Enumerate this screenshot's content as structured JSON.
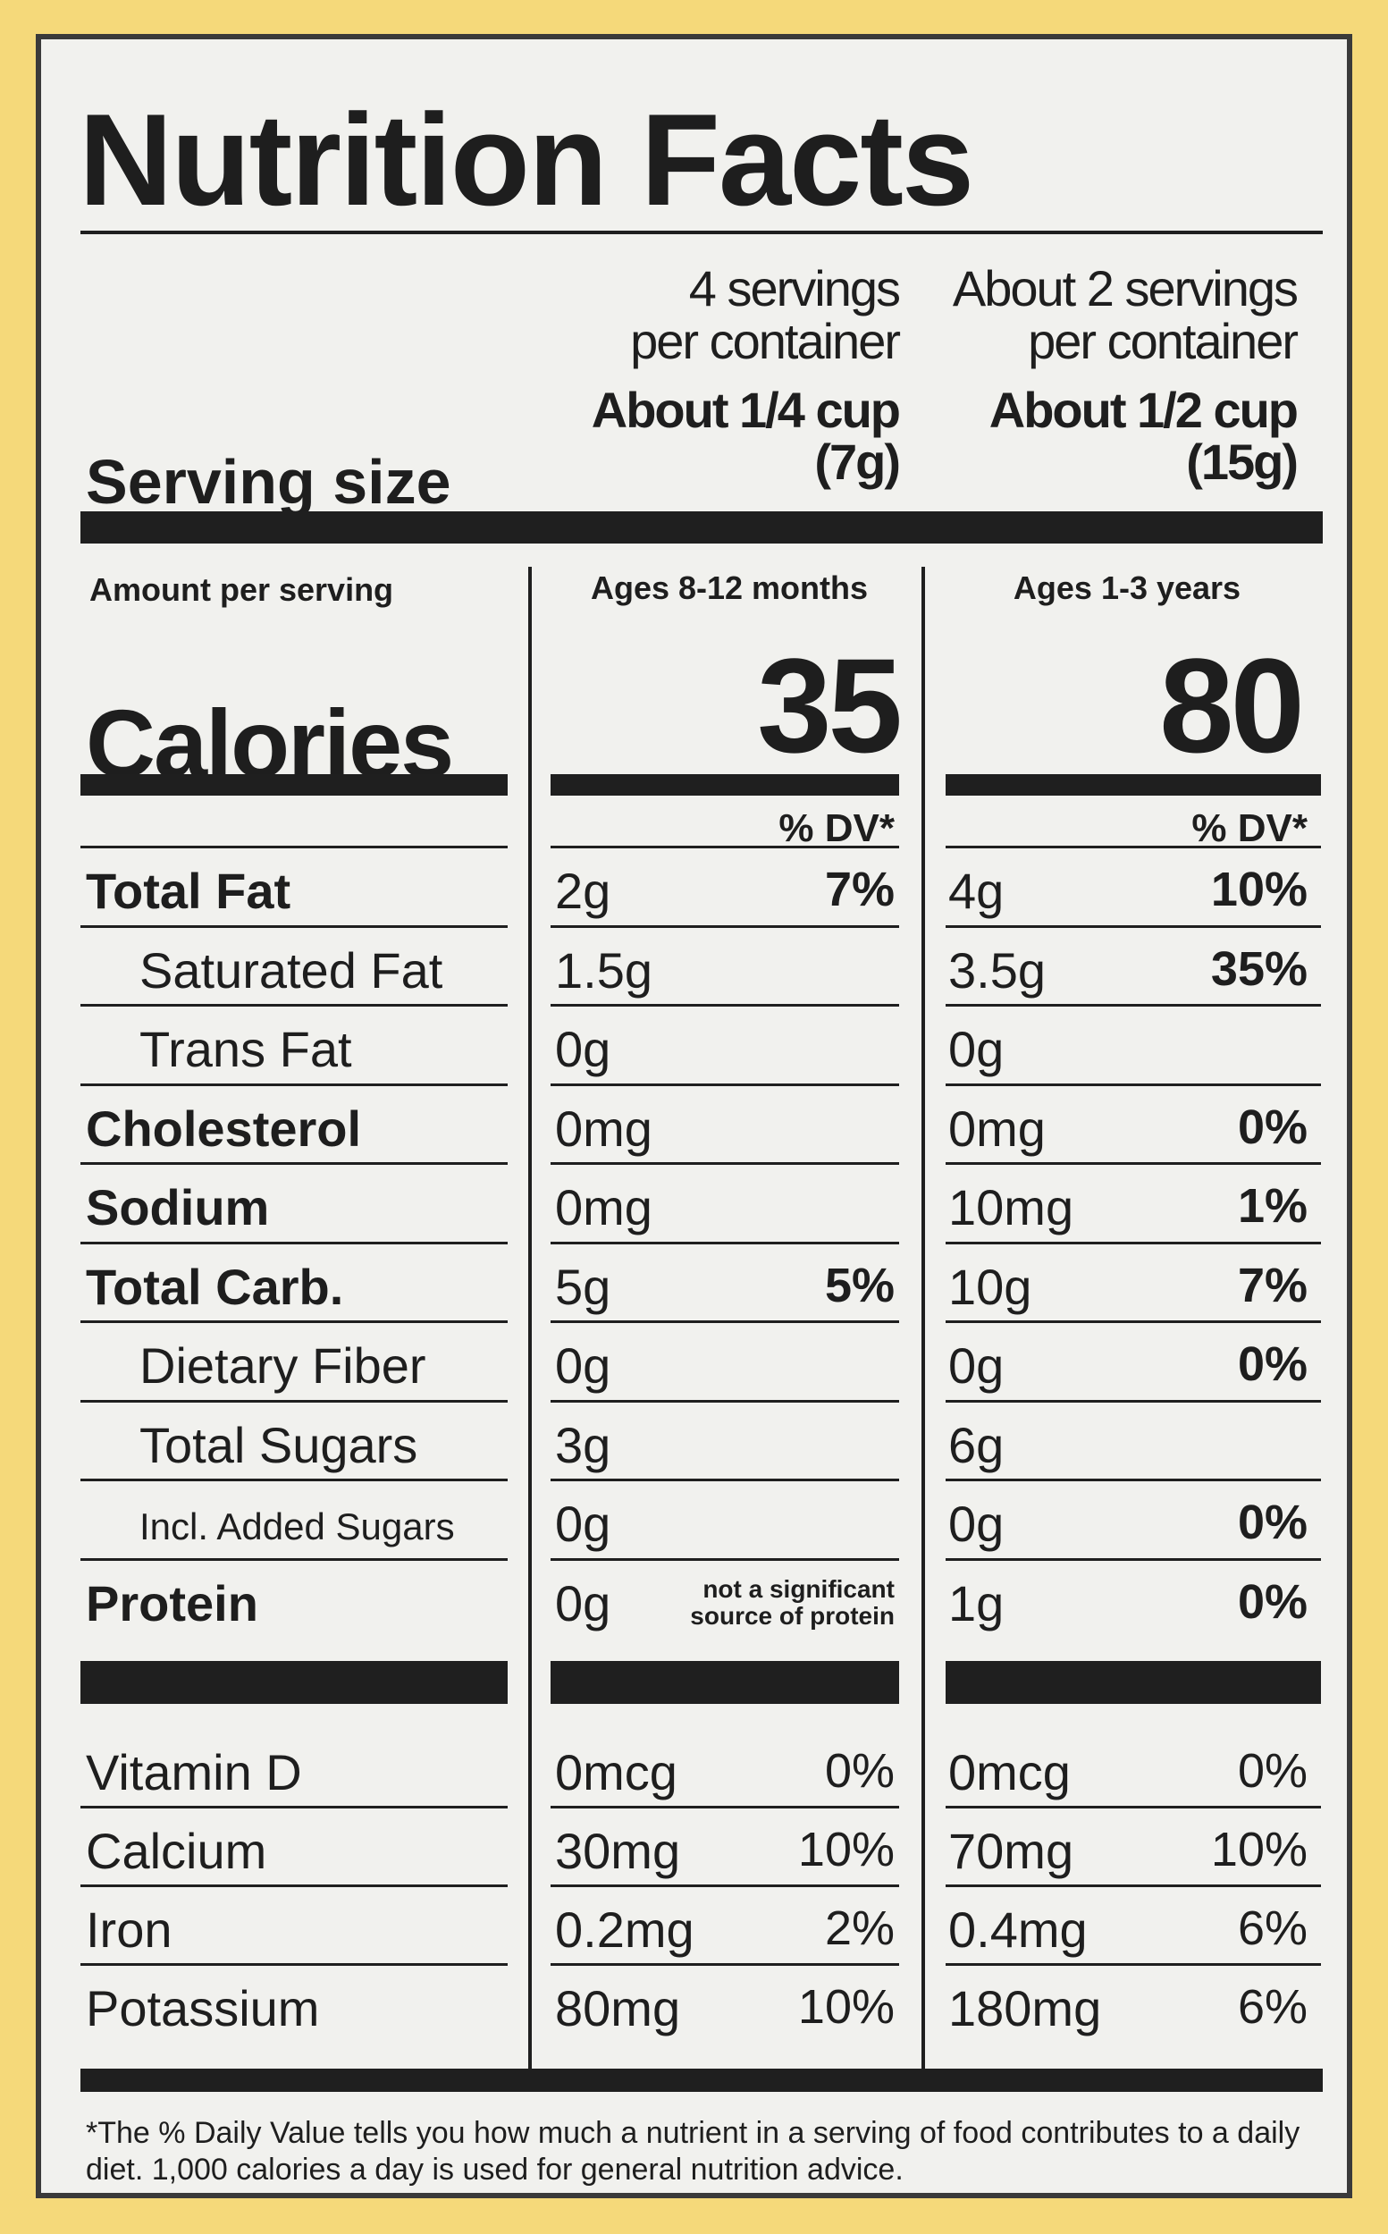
{
  "title": "Nutrition Facts",
  "serving_size_label": "Serving size",
  "columns": [
    {
      "servings_line1": "4 servings",
      "servings_line2": "per container",
      "size_line1": "About 1/4 cup",
      "size_line2": "(7g)",
      "age": "Ages 8-12 months",
      "calories": "35",
      "dv_header": "% DV*"
    },
    {
      "servings_line1": "About 2 servings",
      "servings_line2": "per container",
      "size_line1": "About 1/2 cup",
      "size_line2": "(15g)",
      "age": "Ages 1-3 years",
      "calories": "80",
      "dv_header": "% DV*"
    }
  ],
  "amount_per_serving": "Amount per serving",
  "calories_label": "Calories",
  "nutrients": [
    {
      "label": "Total Fat",
      "c1_amt": "2g",
      "c1_pct": "7%",
      "c2_amt": "4g",
      "c2_pct": "10%"
    },
    {
      "label": "Saturated Fat",
      "c1_amt": "1.5g",
      "c1_pct": "",
      "c2_amt": "3.5g",
      "c2_pct": "35%"
    },
    {
      "label": "Trans Fat",
      "c1_amt": "0g",
      "c1_pct": "",
      "c2_amt": "0g",
      "c2_pct": ""
    },
    {
      "label": "Cholesterol",
      "c1_amt": "0mg",
      "c1_pct": "",
      "c2_amt": "0mg",
      "c2_pct": "0%"
    },
    {
      "label": "Sodium",
      "c1_amt": "0mg",
      "c1_pct": "",
      "c2_amt": "10mg",
      "c2_pct": "1%"
    },
    {
      "label": "Total Carb.",
      "c1_amt": "5g",
      "c1_pct": "5%",
      "c2_amt": "10g",
      "c2_pct": "7%"
    },
    {
      "label": "Dietary Fiber",
      "c1_amt": "0g",
      "c1_pct": "",
      "c2_amt": "0g",
      "c2_pct": "0%"
    },
    {
      "label": "Total Sugars",
      "c1_amt": "3g",
      "c1_pct": "",
      "c2_amt": "6g",
      "c2_pct": ""
    },
    {
      "label": "Incl. Added Sugars",
      "c1_amt": "0g",
      "c1_pct": "",
      "c2_amt": "0g",
      "c2_pct": "0%"
    },
    {
      "label": "Protein",
      "c1_amt": "0g",
      "c1_note_line1": "not a significant",
      "c1_note_line2": "source of protein",
      "c2_amt": "1g",
      "c2_pct": "0%"
    }
  ],
  "vitamins": [
    {
      "label": "Vitamin D",
      "c1_amt": "0mcg",
      "c1_pct": "0%",
      "c2_amt": "0mcg",
      "c2_pct": "0%"
    },
    {
      "label": "Calcium",
      "c1_amt": "30mg",
      "c1_pct": "10%",
      "c2_amt": "70mg",
      "c2_pct": "10%"
    },
    {
      "label": "Iron",
      "c1_amt": "0.2mg",
      "c1_pct": "2%",
      "c2_amt": "0.4mg",
      "c2_pct": "6%"
    },
    {
      "label": "Potassium",
      "c1_amt": "80mg",
      "c1_pct": "10%",
      "c2_amt": "180mg",
      "c2_pct": "6%"
    }
  ],
  "footnote": "*The % Daily Value tells you how much a nutrient in a serving of food contributes to a daily diet. 1,000 calories a day is used for general nutrition advice."
}
